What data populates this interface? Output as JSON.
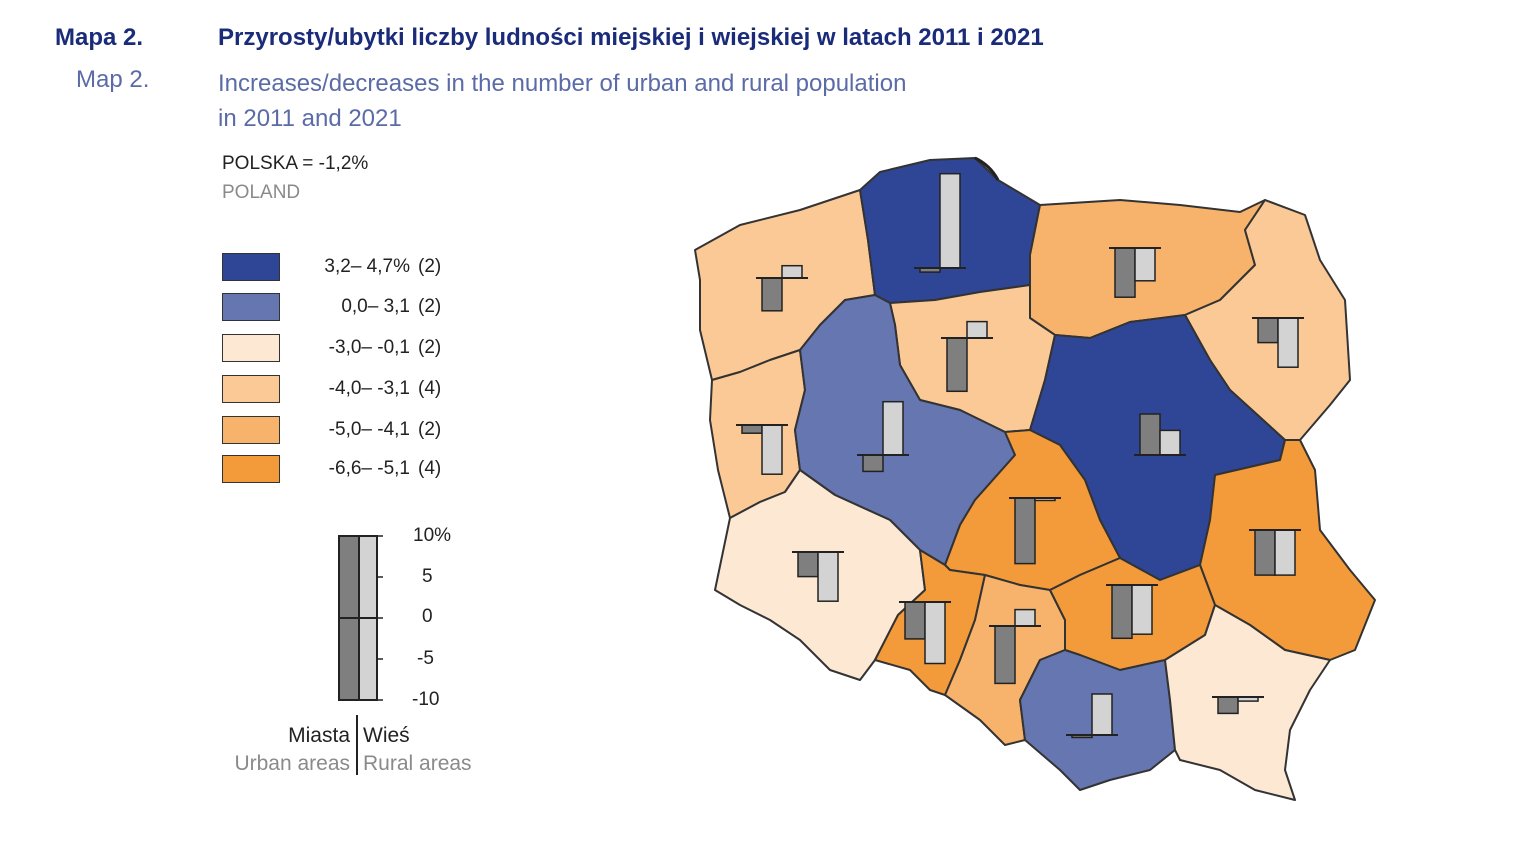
{
  "header": {
    "pl_label": "Mapa 2.",
    "pl_title": "Przyrosty/ubytki liczby ludności miejskiej i wiejskiej w latach 2011 i 2021",
    "en_label": "Map 2.",
    "en_title_line1": "Increases/decreases in the number of urban and rural population",
    "en_title_line2": "in 2011 and 2021"
  },
  "national": {
    "label": "POLSKA = -1,2%",
    "label_en": "POLAND"
  },
  "colors": {
    "dark_blue": "#2f4696",
    "mid_blue": "#6576b0",
    "light_cream": "#fde8d4",
    "light_orange": "#fbc996",
    "mid_orange": "#f7b36b",
    "dark_orange": "#f39a3a",
    "urban_bar": "#7f7f7f",
    "rural_bar": "#d3d3d3"
  },
  "legend": [
    {
      "range": "3,2–  4,7%",
      "count": "(2)",
      "color": "#2f4696"
    },
    {
      "range": "0,0–  3,1",
      "count": "(2)",
      "color": "#6576b0"
    },
    {
      "range": "-3,0– -0,1",
      "count": "(2)",
      "color": "#fde8d4"
    },
    {
      "range": "-4,0– -3,1",
      "count": "(4)",
      "color": "#fbc996"
    },
    {
      "range": "-5,0– -4,1",
      "count": "(2)",
      "color": "#f7b36b"
    },
    {
      "range": "-6,6– -5,1",
      "count": "(4)",
      "color": "#f39a3a"
    }
  ],
  "scale": {
    "ticks": [
      "10%",
      "5",
      "0",
      "-5",
      "-10"
    ],
    "urban_pl": "Miasta",
    "rural_pl": "Wieś",
    "urban_en": "Urban areas",
    "rural_en": "Rural areas"
  },
  "map": {
    "regions": [
      {
        "id": "zachodniopomorskie",
        "fill": "#fbc996",
        "urban": -4,
        "rural": 1.5
      },
      {
        "id": "pomorskie",
        "fill": "#2f4696",
        "urban": -0.5,
        "rural": 11.5
      },
      {
        "id": "warminsko-mazurskie",
        "fill": "#f7b36b",
        "urban": -6,
        "rural": -4
      },
      {
        "id": "podlaskie",
        "fill": "#fbc996",
        "urban": -3,
        "rural": -6
      },
      {
        "id": "kujawsko-pomorskie",
        "fill": "#fbc996",
        "urban": -6.5,
        "rural": 2
      },
      {
        "id": "lubuskie",
        "fill": "#fbc996",
        "urban": -1,
        "rural": -6
      },
      {
        "id": "wielkopolskie",
        "fill": "#6576b0",
        "urban": -2,
        "rural": 6.5
      },
      {
        "id": "mazowieckie",
        "fill": "#2f4696",
        "urban": 5,
        "rural": 3
      },
      {
        "id": "lodzkie",
        "fill": "#f39a3a",
        "urban": -8,
        "rural": -0.3
      },
      {
        "id": "lubelskie",
        "fill": "#f39a3a",
        "urban": -5.5,
        "rural": -5.5
      },
      {
        "id": "dolnoslaskie",
        "fill": "#fde8d4",
        "urban": -3,
        "rural": -6
      },
      {
        "id": "opolskie",
        "fill": "#f39a3a",
        "urban": -4.5,
        "rural": -7.5
      },
      {
        "id": "slaskie",
        "fill": "#f7b36b",
        "urban": -7,
        "rural": 2
      },
      {
        "id": "swietokrzyskie",
        "fill": "#f39a3a",
        "urban": -6.5,
        "rural": -6
      },
      {
        "id": "malopolskie",
        "fill": "#6576b0",
        "urban": -0.3,
        "rural": 5
      },
      {
        "id": "podkarpackie",
        "fill": "#fde8d4",
        "urban": -2,
        "rural": -0.5
      }
    ]
  }
}
